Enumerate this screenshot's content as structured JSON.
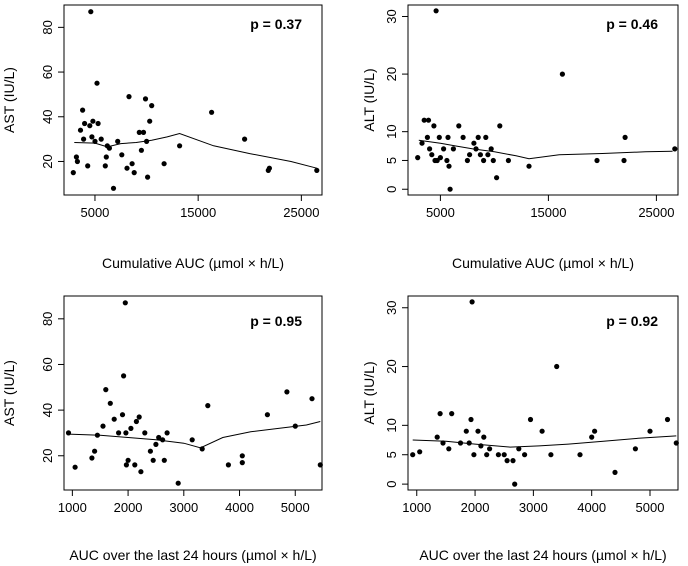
{
  "chart_data": [
    {
      "type": "scatter",
      "id": "p1",
      "xlabel": "Cumulative AUC (µmol × h/L)",
      "ylabel": "AST (IU/L)",
      "annotation": "p = 0.37",
      "xlim": [
        2000,
        27000
      ],
      "ylim": [
        5,
        90
      ],
      "xticks": [
        5000,
        15000,
        25000
      ],
      "yticks": [
        20,
        40,
        60,
        80
      ],
      "points": [
        [
          2900,
          15
        ],
        [
          3200,
          22
        ],
        [
          3300,
          20
        ],
        [
          3600,
          34
        ],
        [
          3800,
          43
        ],
        [
          3900,
          30
        ],
        [
          4000,
          37
        ],
        [
          4300,
          18
        ],
        [
          4500,
          36
        ],
        [
          4600,
          87
        ],
        [
          4700,
          31
        ],
        [
          4800,
          38
        ],
        [
          5000,
          29
        ],
        [
          5200,
          55
        ],
        [
          5300,
          37
        ],
        [
          5600,
          30
        ],
        [
          6000,
          18
        ],
        [
          6100,
          22
        ],
        [
          6200,
          27
        ],
        [
          6400,
          26
        ],
        [
          6800,
          8
        ],
        [
          7200,
          29
        ],
        [
          7600,
          23
        ],
        [
          8100,
          17
        ],
        [
          8300,
          49
        ],
        [
          8600,
          19
        ],
        [
          8800,
          15
        ],
        [
          9300,
          33
        ],
        [
          9500,
          25
        ],
        [
          9700,
          33
        ],
        [
          9900,
          48
        ],
        [
          10000,
          29
        ],
        [
          10100,
          13
        ],
        [
          10300,
          38
        ],
        [
          10500,
          45
        ],
        [
          11700,
          19
        ],
        [
          13200,
          27
        ],
        [
          16300,
          42
        ],
        [
          19500,
          30
        ],
        [
          21800,
          16
        ],
        [
          21900,
          17
        ],
        [
          26500,
          16
        ]
      ],
      "trend": [
        [
          3000,
          28.5
        ],
        [
          5000,
          28.2
        ],
        [
          6200,
          26.5
        ],
        [
          7500,
          28
        ],
        [
          9000,
          28.5
        ],
        [
          10500,
          29.5
        ],
        [
          12000,
          31
        ],
        [
          13200,
          32.5
        ],
        [
          16500,
          27
        ],
        [
          20000,
          23.5
        ],
        [
          24000,
          20
        ],
        [
          26500,
          17
        ]
      ]
    },
    {
      "type": "scatter",
      "id": "p2",
      "xlabel": "Cumulative AUC (µmol × h/L)",
      "ylabel": "ALT (IU/L)",
      "annotation": "p = 0.46",
      "xlim": [
        2000,
        27000
      ],
      "ylim": [
        -1,
        32
      ],
      "xticks": [
        5000,
        15000,
        25000
      ],
      "yticks": [
        0,
        5,
        10,
        20,
        30
      ],
      "points": [
        [
          2900,
          5.5
        ],
        [
          3300,
          8
        ],
        [
          3500,
          12
        ],
        [
          3800,
          9
        ],
        [
          3900,
          12
        ],
        [
          4000,
          7
        ],
        [
          4200,
          6
        ],
        [
          4400,
          11
        ],
        [
          4500,
          5
        ],
        [
          4600,
          31
        ],
        [
          4700,
          5
        ],
        [
          4900,
          9
        ],
        [
          5000,
          5.5
        ],
        [
          5300,
          7
        ],
        [
          5600,
          5
        ],
        [
          5700,
          9
        ],
        [
          5800,
          4
        ],
        [
          5900,
          0
        ],
        [
          6200,
          7
        ],
        [
          6700,
          11
        ],
        [
          7100,
          9
        ],
        [
          7500,
          5
        ],
        [
          7700,
          6
        ],
        [
          8100,
          8
        ],
        [
          8300,
          7
        ],
        [
          8500,
          9
        ],
        [
          8700,
          6
        ],
        [
          9000,
          5
        ],
        [
          9200,
          9
        ],
        [
          9400,
          6
        ],
        [
          9700,
          7
        ],
        [
          9900,
          5
        ],
        [
          10200,
          2
        ],
        [
          10500,
          11
        ],
        [
          11300,
          5
        ],
        [
          13200,
          4
        ],
        [
          16300,
          20
        ],
        [
          19500,
          5
        ],
        [
          22000,
          5
        ],
        [
          22100,
          9
        ],
        [
          26700,
          7
        ]
      ],
      "trend": [
        [
          3000,
          8.5
        ],
        [
          5000,
          8
        ],
        [
          6500,
          7.5
        ],
        [
          8000,
          7
        ],
        [
          10000,
          6.5
        ],
        [
          12000,
          5.8
        ],
        [
          13200,
          5.3
        ],
        [
          16000,
          6
        ],
        [
          20000,
          6.2
        ],
        [
          24000,
          6.5
        ],
        [
          26500,
          6.6
        ]
      ]
    },
    {
      "type": "scatter",
      "id": "p3",
      "xlabel": "AUC over the last 24 hours (µmol × h/L)",
      "ylabel": "AST (IU/L)",
      "annotation": "p = 0.95",
      "xlim": [
        850,
        5480
      ],
      "ylim": [
        5,
        90
      ],
      "xticks": [
        1000,
        2000,
        3000,
        4000,
        5000
      ],
      "yticks": [
        20,
        40,
        60,
        80
      ],
      "points": [
        [
          930,
          30
        ],
        [
          1050,
          15
        ],
        [
          1350,
          19
        ],
        [
          1400,
          22
        ],
        [
          1450,
          29
        ],
        [
          1550,
          33
        ],
        [
          1600,
          49
        ],
        [
          1680,
          43
        ],
        [
          1750,
          36
        ],
        [
          1830,
          30
        ],
        [
          1900,
          38
        ],
        [
          1920,
          55
        ],
        [
          1950,
          87
        ],
        [
          1960,
          30
        ],
        [
          1970,
          16
        ],
        [
          2000,
          18
        ],
        [
          2050,
          32
        ],
        [
          2120,
          16
        ],
        [
          2150,
          35
        ],
        [
          2200,
          37
        ],
        [
          2230,
          13
        ],
        [
          2300,
          30
        ],
        [
          2400,
          22
        ],
        [
          2450,
          18
        ],
        [
          2500,
          25
        ],
        [
          2550,
          28
        ],
        [
          2620,
          27
        ],
        [
          2650,
          18
        ],
        [
          2700,
          30
        ],
        [
          2900,
          8
        ],
        [
          3150,
          27
        ],
        [
          3330,
          23
        ],
        [
          3430,
          42
        ],
        [
          3800,
          16
        ],
        [
          4050,
          20
        ],
        [
          4050,
          17
        ],
        [
          4500,
          38
        ],
        [
          4850,
          48
        ],
        [
          5000,
          33
        ],
        [
          5300,
          45
        ],
        [
          5450,
          16
        ]
      ],
      "trend": [
        [
          930,
          29.5
        ],
        [
          1500,
          29
        ],
        [
          2000,
          28
        ],
        [
          2500,
          27
        ],
        [
          3000,
          25.5
        ],
        [
          3300,
          23.5
        ],
        [
          3700,
          28
        ],
        [
          4200,
          30.5
        ],
        [
          4700,
          32
        ],
        [
          5200,
          33.5
        ],
        [
          5450,
          35
        ]
      ]
    },
    {
      "type": "scatter",
      "id": "p4",
      "xlabel": "AUC over the last 24 hours (µmol × h/L)",
      "ylabel": "ALT (IU/L)",
      "annotation": "p = 0.92",
      "xlim": [
        850,
        5480
      ],
      "ylim": [
        -1,
        32
      ],
      "xticks": [
        1000,
        2000,
        3000,
        4000,
        5000
      ],
      "yticks": [
        0,
        5,
        10,
        20,
        30
      ],
      "points": [
        [
          930,
          5
        ],
        [
          1050,
          5.5
        ],
        [
          1350,
          8
        ],
        [
          1400,
          12
        ],
        [
          1450,
          7
        ],
        [
          1550,
          6
        ],
        [
          1600,
          12
        ],
        [
          1750,
          7
        ],
        [
          1850,
          9
        ],
        [
          1900,
          7
        ],
        [
          1930,
          11
        ],
        [
          1950,
          31
        ],
        [
          1980,
          5
        ],
        [
          2050,
          9
        ],
        [
          2100,
          6.5
        ],
        [
          2150,
          8
        ],
        [
          2200,
          5
        ],
        [
          2250,
          6
        ],
        [
          2400,
          5
        ],
        [
          2500,
          5
        ],
        [
          2550,
          4
        ],
        [
          2650,
          4
        ],
        [
          2680,
          0
        ],
        [
          2750,
          6
        ],
        [
          2850,
          5
        ],
        [
          2950,
          11
        ],
        [
          3150,
          9
        ],
        [
          3300,
          5
        ],
        [
          3400,
          20
        ],
        [
          3800,
          5
        ],
        [
          4000,
          8
        ],
        [
          4050,
          9
        ],
        [
          4400,
          2
        ],
        [
          4750,
          6
        ],
        [
          5000,
          9
        ],
        [
          5300,
          11
        ],
        [
          5450,
          7
        ]
      ],
      "trend": [
        [
          930,
          7.5
        ],
        [
          1500,
          7.3
        ],
        [
          2000,
          6.8
        ],
        [
          2600,
          6.3
        ],
        [
          3100,
          6.5
        ],
        [
          3600,
          6.8
        ],
        [
          4200,
          7.3
        ],
        [
          4800,
          7.8
        ],
        [
          5450,
          8.2
        ]
      ]
    }
  ]
}
